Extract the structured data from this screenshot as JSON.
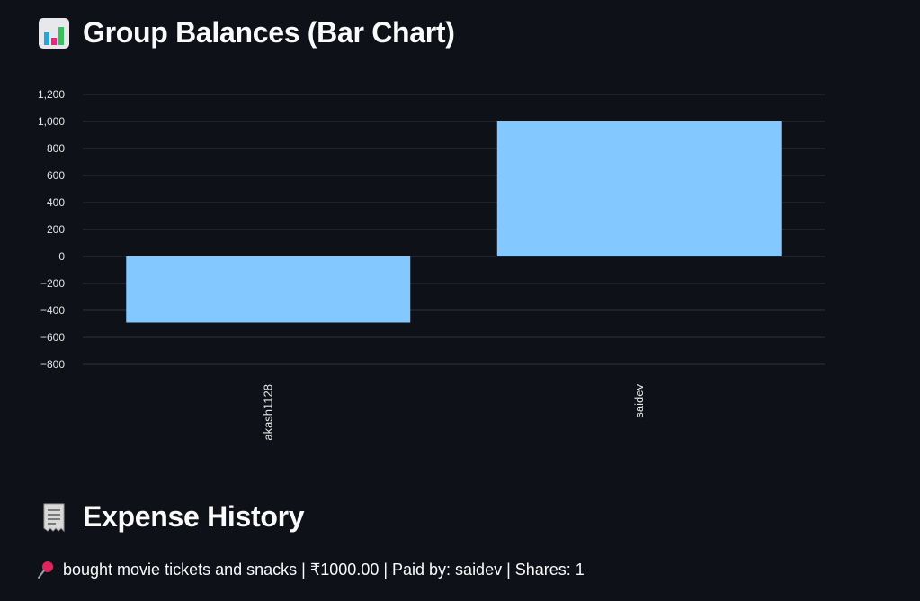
{
  "chart_section": {
    "title": "Group Balances (Bar Chart)",
    "icon": "bar-chart-icon"
  },
  "chart_data": {
    "type": "bar",
    "categories": [
      "akash1128",
      "saidev"
    ],
    "values": [
      -490,
      1000
    ],
    "ylim": [
      -800,
      1200
    ],
    "yticks": [
      1200,
      1000,
      800,
      600,
      400,
      200,
      0,
      -200,
      -400,
      -600,
      -800
    ],
    "ytick_labels": [
      "1,200",
      "1,000",
      "800",
      "600",
      "400",
      "200",
      "0",
      "−200",
      "−400",
      "−600",
      "−800"
    ],
    "xlabel": "",
    "ylabel": "",
    "grid": true,
    "bar_color": "#83c9ff",
    "category_label_rotation": "vertical"
  },
  "history_section": {
    "title": "Expense History",
    "icon": "receipt-icon"
  },
  "expenses": [
    {
      "icon": "pushpin-icon",
      "text": "bought movie tickets and snacks | ₹1000.00 | Paid by: saidev | Shares: 1"
    }
  ],
  "colors": {
    "background": "#0e1117",
    "bar": "#83c9ff",
    "gridline": "#2f333b",
    "text": "#fafafa"
  }
}
